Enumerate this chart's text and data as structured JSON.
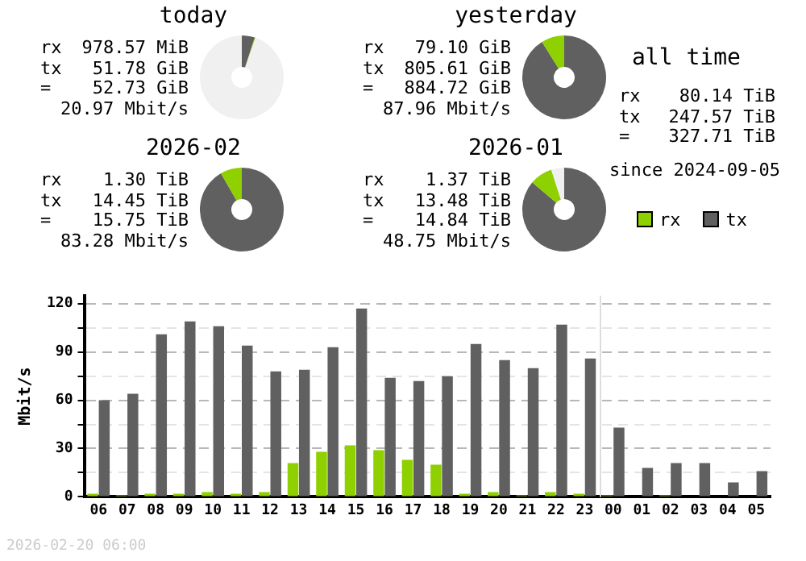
{
  "chart_data": [
    {
      "type": "donut",
      "title": "today",
      "categories": [
        "tx",
        "rx",
        null
      ],
      "values": [
        5,
        0.3,
        94.7
      ],
      "colors": [
        "#606060",
        "#8fd000",
        "#f0f0f0"
      ],
      "legend": "bottom right",
      "annotations": [
        "rx 978.57 MiB",
        "tx 51.78 GiB",
        "= 52.73 GiB",
        "20.97 Mbit/s"
      ]
    },
    {
      "type": "donut",
      "title": "yesterday",
      "categories": [
        null,
        null,
        null
      ],
      "values": [
        91.1,
        8.9,
        0
      ],
      "colors": [
        "#606060",
        "#8fd000",
        "#f0f0f0"
      ],
      "annotations": [
        "rx 79.10 GiB",
        "tx 805.61 GiB",
        "= 884.72 GiB",
        "87.96 Mbit/s"
      ]
    },
    {
      "type": "donut",
      "title": "2026-02",
      "categories": [
        null,
        null,
        null
      ],
      "values": [
        91.7,
        8.3,
        0
      ],
      "colors": [
        "#606060",
        "#8fd000",
        "#f0f0f0"
      ],
      "annotations": [
        "rx 1.30 TiB",
        "tx 14.45 TiB",
        "= 15.75 TiB",
        "83.28 Mbit/s"
      ]
    },
    {
      "type": "donut",
      "title": "2026-01",
      "categories": [
        null,
        null,
        null
      ],
      "values": [
        86.2,
        8.8,
        5
      ],
      "colors": [
        "#606060",
        "#8fd000",
        "#f0f0f0"
      ],
      "annotations": [
        "rx 1.37 TiB",
        "tx 13.48 TiB",
        "= 14.84 TiB",
        "48.75 Mbit/s"
      ]
    },
    {
      "type": "other",
      "title": "all time",
      "annotations": [
        "rx 80.14 TiB",
        "tx 247.57 TiB",
        "= 327.71 TiB",
        "since 2024-09-05"
      ]
    },
    {
      "type": "bar",
      "ylabel": "Mbit/s",
      "categories": [
        "06",
        "07",
        "08",
        "09",
        "10",
        "11",
        "12",
        "13",
        "14",
        "15",
        "16",
        "17",
        "18",
        "19",
        "20",
        "21",
        "22",
        "23",
        "00",
        "01",
        "02",
        "03",
        "04",
        "05"
      ],
      "series": [
        {
          "color": "#8fd000",
          "values": [
            2,
            1,
            2,
            2,
            3,
            2,
            3,
            21,
            28,
            32,
            29,
            23,
            20,
            2,
            3,
            1,
            3,
            2,
            1,
            0,
            1,
            0,
            0,
            0
          ]
        },
        {
          "color": "#606060",
          "values": [
            60,
            64,
            101,
            109,
            106,
            94,
            78,
            79,
            93,
            117,
            74,
            72,
            75,
            95,
            85,
            80,
            107,
            86,
            43,
            18,
            21,
            21,
            9,
            16
          ]
        }
      ],
      "ylim": [
        0,
        125
      ],
      "yticks": [
        0,
        {
          "value": 15,
          "label": null
        },
        30,
        {
          "value": 45,
          "label": null
        },
        60,
        {
          "value": 75,
          "label": null
        },
        90,
        {
          "value": 105,
          "label": null
        },
        120
      ],
      "grid": "y",
      "ref_lines": [
        {
          "axis": "x",
          "value": "00",
          "color": "#dddddd"
        }
      ],
      "annotations": [
        "2026-02-20 06:00"
      ]
    }
  ]
}
